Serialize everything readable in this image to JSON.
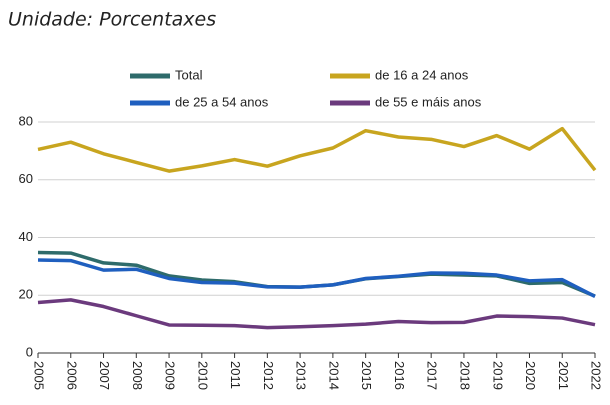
{
  "chart_data": {
    "type": "line",
    "title": "Unidade: Porcentaxes",
    "categories": [
      "2005",
      "2006",
      "2007",
      "2008",
      "2009",
      "2010",
      "2011",
      "2012",
      "2013",
      "2014",
      "2015",
      "2016",
      "2017",
      "2018",
      "2019",
      "2020",
      "2021",
      "2022"
    ],
    "series": [
      {
        "name": "de 16 a 24 anos",
        "color": "#c8a51f",
        "values": [
          70.5,
          73,
          69,
          66,
          63,
          64.8,
          67,
          64.7,
          68.3,
          71,
          77,
          74.8,
          74,
          71.5,
          75.3,
          70.6,
          77.7,
          63.3
        ]
      },
      {
        "name": "Total",
        "color": "#2e6b6b",
        "values": [
          34.8,
          34.6,
          31.2,
          30.4,
          26.7,
          25.3,
          24.7,
          23.0,
          22.8,
          23.6,
          25.7,
          26.5,
          27.3,
          27.0,
          26.7,
          24.1,
          24.4,
          19.7
        ]
      },
      {
        "name": "de 25 a 54 anos",
        "color": "#1f5fbf",
        "values": [
          32.2,
          32.0,
          28.7,
          29.0,
          25.8,
          24.4,
          24.2,
          22.9,
          22.8,
          23.6,
          25.8,
          26.6,
          27.7,
          27.6,
          27.0,
          25.0,
          25.4,
          19.6
        ]
      },
      {
        "name": "de 55 e máis anos",
        "color": "#6b3a7d",
        "values": [
          17.5,
          18.4,
          16.1,
          12.9,
          9.7,
          9.6,
          9.5,
          8.8,
          9.1,
          9.5,
          10.0,
          10.9,
          10.5,
          10.6,
          12.8,
          12.6,
          12.1,
          9.8
        ]
      }
    ],
    "ylim": [
      0,
      80
    ],
    "yticks": [
      0,
      20,
      40,
      60,
      80
    ],
    "grid": true,
    "legend": "top"
  }
}
